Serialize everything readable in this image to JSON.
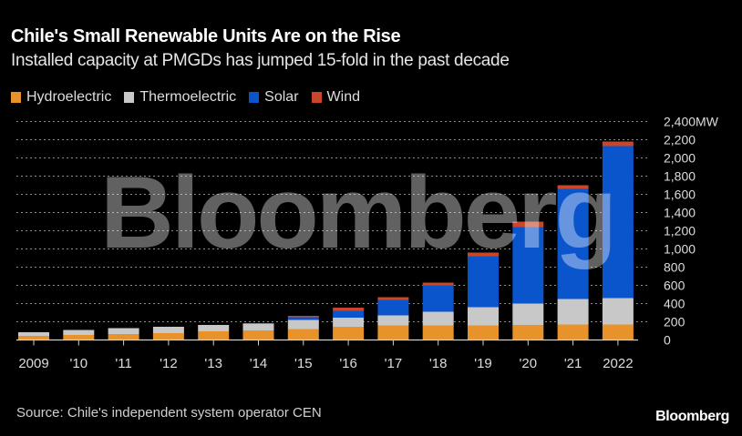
{
  "header": {
    "title": "Chile's Small Renewable Units Are on the Rise",
    "subtitle": "Installed capacity at PMGDs has jumped 15-fold in the past decade"
  },
  "legend": [
    {
      "label": "Hydroelectric",
      "color": "#e8922c"
    },
    {
      "label": "Thermoelectric",
      "color": "#c8c8c8"
    },
    {
      "label": "Solar",
      "color": "#0a54cc"
    },
    {
      "label": "Wind",
      "color": "#c8472a"
    }
  ],
  "footer": {
    "source": "Source: Chile's independent system operator CEN",
    "brand": "Bloomberg"
  },
  "watermark": "Bloomberg",
  "chart_data": {
    "type": "bar",
    "stacked": true,
    "title": "Chile's Small Renewable Units Are on the Rise",
    "subtitle": "Installed capacity at PMGDs has jumped 15-fold in the past decade",
    "xlabel": "",
    "ylabel": "",
    "y_unit": "MW",
    "ylim": [
      0,
      2400
    ],
    "yticks": [
      0,
      200,
      400,
      600,
      800,
      1000,
      1200,
      1400,
      1600,
      1800,
      2000,
      2200,
      2400
    ],
    "ytick_labels": [
      "0",
      "200",
      "400",
      "600",
      "800",
      "1,000",
      "1,200",
      "1,400",
      "1,600",
      "1,800",
      "2,000",
      "2,200",
      "2,400MW"
    ],
    "grid": true,
    "y_axis_position": "right",
    "legend_position": "top-left",
    "categories": [
      "2009",
      "'10",
      "'11",
      "'12",
      "'13",
      "'14",
      "'15",
      "'16",
      "'17",
      "'18",
      "'19",
      "'20",
      "'21",
      "2022"
    ],
    "series": [
      {
        "name": "Hydroelectric",
        "color": "#e8922c",
        "values": [
          45,
          55,
          65,
          75,
          95,
          105,
          120,
          145,
          160,
          160,
          160,
          165,
          170,
          170
        ]
      },
      {
        "name": "Thermoelectric",
        "color": "#c8c8c8",
        "values": [
          40,
          55,
          65,
          70,
          70,
          75,
          100,
          100,
          110,
          150,
          200,
          235,
          280,
          290
        ]
      },
      {
        "name": "Solar",
        "color": "#0a54cc",
        "values": [
          0,
          0,
          0,
          0,
          0,
          5,
          30,
          75,
          170,
          290,
          560,
          840,
          1210,
          1670
        ]
      },
      {
        "name": "Wind",
        "color": "#c8472a",
        "values": [
          0,
          0,
          0,
          0,
          0,
          0,
          15,
          35,
          30,
          30,
          40,
          60,
          40,
          50
        ]
      }
    ],
    "source": "Source: Chile's independent system operator CEN"
  }
}
